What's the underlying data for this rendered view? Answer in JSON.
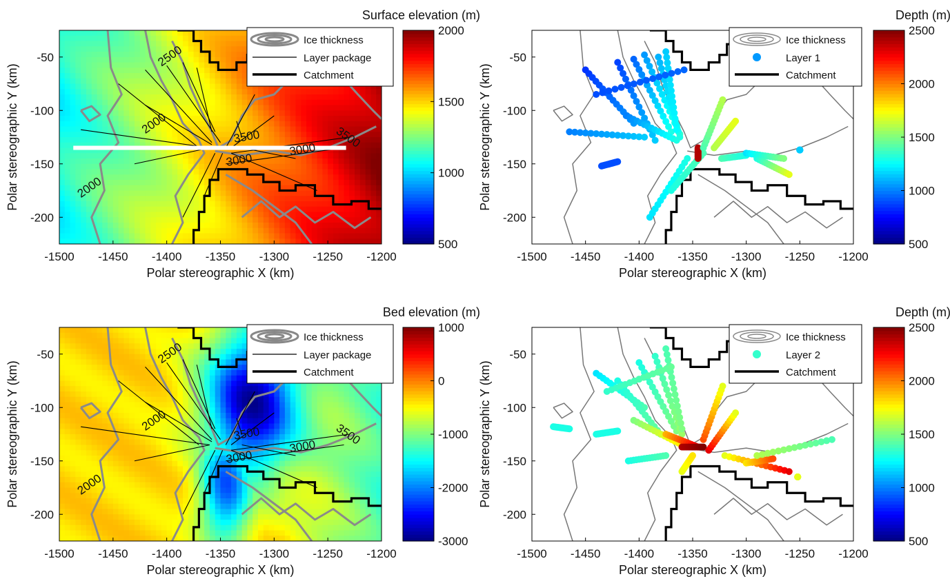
{
  "chart_data": [
    {
      "type": "heatmap",
      "panel": "top-left",
      "xlabel": "Polar stereographic X (km)",
      "ylabel": "Polar stereographic Y (km)",
      "xlim": [
        -1500,
        -1200
      ],
      "ylim": [
        -225,
        -25
      ],
      "xticks": [
        -1500,
        -1450,
        -1400,
        -1350,
        -1300,
        -1250,
        -1200
      ],
      "yticks": [
        -50,
        -100,
        -150,
        -200
      ],
      "colorbar": {
        "title": "Surface elevation (m)",
        "min": 500,
        "max": 2000,
        "ticks": [
          2000,
          1500,
          1000,
          500
        ],
        "colormap": "jet"
      },
      "field_trend": "increases west to east (about 1100 m at x=-1500 to about 1950 m at x=-1200)",
      "legend": {
        "position": "top-right",
        "entries": [
          "Ice thickness",
          "Layer package",
          "Catchment"
        ]
      },
      "contour_labels": [
        {
          "text": "2500",
          "x": -1395,
          "y": -52
        },
        {
          "text": "2000",
          "x": -1410,
          "y": -115
        },
        {
          "text": "2000",
          "x": -1470,
          "y": -175
        },
        {
          "text": "3500",
          "x": -1325,
          "y": -128
        },
        {
          "text": "3000",
          "x": -1332,
          "y": -150
        },
        {
          "text": "3000",
          "x": -1273,
          "y": -140
        },
        {
          "text": "3500",
          "x": -1233,
          "y": -128
        }
      ],
      "profile_line": {
        "x": [
          -1487,
          -1233
        ],
        "y": [
          -135,
          -135
        ]
      }
    },
    {
      "type": "scatter",
      "panel": "top-right",
      "xlabel": "Polar stereographic X (km)",
      "ylabel": "Polar stereographic Y (km)",
      "xlim": [
        -1500,
        -1200
      ],
      "ylim": [
        -225,
        -25
      ],
      "xticks": [
        -1500,
        -1450,
        -1400,
        -1350,
        -1300,
        -1250,
        -1200
      ],
      "yticks": [
        -50,
        -100,
        -150,
        -200
      ],
      "colorbar": {
        "title": "Depth (m)",
        "min": 500,
        "max": 2500,
        "ticks": [
          2500,
          2000,
          1500,
          1000,
          500
        ],
        "colormap": "jet"
      },
      "legend": {
        "position": "top-right",
        "entries": [
          "Ice thickness",
          "Layer 1",
          "Catchment"
        ]
      },
      "series": [
        {
          "name": "Layer 1",
          "tracks": [
            {
              "x": [
                -1450,
                -1405
              ],
              "y": [
                -62,
                -112
              ],
              "depth": [
                850,
                1050
              ]
            },
            {
              "x": [
                -1420,
                -1385
              ],
              "y": [
                -55,
                -128
              ],
              "depth": [
                880,
                1150
              ]
            },
            {
              "x": [
                -1405,
                -1370
              ],
              "y": [
                -52,
                -120
              ],
              "depth": [
                950,
                1300
              ]
            },
            {
              "x": [
                -1395,
                -1362
              ],
              "y": [
                -48,
                -122
              ],
              "depth": [
                1050,
                1350
              ]
            },
            {
              "x": [
                -1382,
                -1362
              ],
              "y": [
                -50,
                -125
              ],
              "depth": [
                1100,
                1300
              ]
            },
            {
              "x": [
                -1375,
                -1365
              ],
              "y": [
                -45,
                -118
              ],
              "depth": [
                1150,
                1250
              ]
            },
            {
              "x": [
                -1440,
                -1358
              ],
              "y": [
                -85,
                -62
              ],
              "depth": [
                900,
                950
              ]
            },
            {
              "x": [
                -1465,
                -1395
              ],
              "y": [
                -120,
                -125
              ],
              "depth": [
                1000,
                1150
              ]
            },
            {
              "x": [
                -1412,
                -1365
              ],
              "y": [
                -105,
                -128
              ],
              "depth": [
                1000,
                1300
              ]
            },
            {
              "x": [
                -1435,
                -1420
              ],
              "y": [
                -152,
                -148
              ],
              "depth": [
                900,
                900
              ]
            },
            {
              "x": [
                -1390,
                -1355
              ],
              "y": [
                -200,
                -145
              ],
              "depth": [
                1200,
                1300
              ]
            },
            {
              "x": [
                -1370,
                -1340
              ],
              "y": [
                -175,
                -140
              ],
              "depth": [
                1300,
                1400
              ]
            },
            {
              "x": [
                -1345,
                -1345
              ],
              "y": [
                -135,
                -145
              ],
              "depth": [
                2400,
                2400
              ]
            },
            {
              "x": [
                -1340,
                -1322
              ],
              "y": [
                -135,
                -90
              ],
              "depth": [
                1400,
                1600
              ]
            },
            {
              "x": [
                -1330,
                -1310
              ],
              "y": [
                -135,
                -110
              ],
              "depth": [
                1600,
                1700
              ]
            },
            {
              "x": [
                -1323,
                -1300
              ],
              "y": [
                -145,
                -142
              ],
              "depth": [
                1400,
                1300
              ]
            },
            {
              "x": [
                -1300,
                -1265
              ],
              "y": [
                -140,
                -145
              ],
              "depth": [
                1200,
                1500
              ]
            },
            {
              "x": [
                -1290,
                -1260
              ],
              "y": [
                -145,
                -160
              ],
              "depth": [
                1300,
                1700
              ]
            },
            {
              "x": [
                -1250,
                -1250
              ],
              "y": [
                -137,
                -137
              ],
              "depth": [
                1150,
                1150
              ]
            }
          ]
        }
      ]
    },
    {
      "type": "heatmap",
      "panel": "bottom-left",
      "xlabel": "Polar stereographic X (km)",
      "ylabel": "Polar stereographic Y (km)",
      "xlim": [
        -1500,
        -1200
      ],
      "ylim": [
        -225,
        -25
      ],
      "xticks": [
        -1500,
        -1450,
        -1400,
        -1350,
        -1300,
        -1250,
        -1200
      ],
      "yticks": [
        -50,
        -100,
        -150,
        -200
      ],
      "colorbar": {
        "title": "Bed elevation (m)",
        "min": -3000,
        "max": 1000,
        "ticks": [
          1000,
          0,
          -1000,
          -2000,
          -3000
        ],
        "colormap": "jet"
      },
      "field_trend": "about -300 m in the west, deep trough down to about -2800 m centred near x=-1320, y=-90, about -1300 m in the east",
      "legend": {
        "position": "top-right",
        "entries": [
          "Ice thickness",
          "Layer package",
          "Catchment"
        ]
      },
      "contour_labels": [
        {
          "text": "2500",
          "x": -1395,
          "y": -52
        },
        {
          "text": "2000",
          "x": -1410,
          "y": -115
        },
        {
          "text": "2000",
          "x": -1470,
          "y": -175
        },
        {
          "text": "3500",
          "x": -1325,
          "y": -128
        },
        {
          "text": "3000",
          "x": -1332,
          "y": -150
        },
        {
          "text": "3000",
          "x": -1273,
          "y": -140
        },
        {
          "text": "3500",
          "x": -1233,
          "y": -128
        }
      ]
    },
    {
      "type": "scatter",
      "panel": "bottom-right",
      "xlabel": "Polar stereographic X (km)",
      "ylabel": "Polar stereographic Y (km)",
      "xlim": [
        -1500,
        -1200
      ],
      "ylim": [
        -225,
        -25
      ],
      "xticks": [
        -1500,
        -1450,
        -1400,
        -1350,
        -1300,
        -1250,
        -1200
      ],
      "yticks": [
        -50,
        -100,
        -150,
        -200
      ],
      "colorbar": {
        "title": "Depth (m)",
        "min": 500,
        "max": 2500,
        "ticks": [
          2500,
          2000,
          1500,
          1000,
          500
        ],
        "colormap": "jet"
      },
      "legend": {
        "position": "top-right",
        "entries": [
          "Ice thickness",
          "Layer 2",
          "Catchment"
        ]
      },
      "series": [
        {
          "name": "Layer 2",
          "tracks": [
            {
              "x": [
                -1440,
                -1395
              ],
              "y": [
                -68,
                -100
              ],
              "depth": [
                1200,
                1400
              ]
            },
            {
              "x": [
                -1420,
                -1380
              ],
              "y": [
                -75,
                -125
              ],
              "depth": [
                1300,
                1450
              ]
            },
            {
              "x": [
                -1400,
                -1365
              ],
              "y": [
                -58,
                -122
              ],
              "depth": [
                1300,
                1500
              ]
            },
            {
              "x": [
                -1385,
                -1360
              ],
              "y": [
                -52,
                -125
              ],
              "depth": [
                1350,
                1550
              ]
            },
            {
              "x": [
                -1375,
                -1360
              ],
              "y": [
                -45,
                -120
              ],
              "depth": [
                1400,
                1500
              ]
            },
            {
              "x": [
                -1430,
                -1370
              ],
              "y": [
                -85,
                -62
              ],
              "depth": [
                1350,
                1450
              ]
            },
            {
              "x": [
                -1480,
                -1465
              ],
              "y": [
                -118,
                -120
              ],
              "depth": [
                1300,
                1300
              ]
            },
            {
              "x": [
                -1440,
                -1420
              ],
              "y": [
                -125,
                -122
              ],
              "depth": [
                1300,
                1300
              ]
            },
            {
              "x": [
                -1405,
                -1360
              ],
              "y": [
                -112,
                -135
              ],
              "depth": [
                1500,
                1800
              ]
            },
            {
              "x": [
                -1375,
                -1345
              ],
              "y": [
                -125,
                -137
              ],
              "depth": [
                1900,
                2300
              ]
            },
            {
              "x": [
                -1360,
                -1340
              ],
              "y": [
                -137,
                -137
              ],
              "depth": [
                2400,
                2500
              ]
            },
            {
              "x": [
                -1340,
                -1322
              ],
              "y": [
                -130,
                -80
              ],
              "depth": [
                2100,
                1700
              ]
            },
            {
              "x": [
                -1335,
                -1310
              ],
              "y": [
                -140,
                -105
              ],
              "depth": [
                2300,
                1700
              ]
            },
            {
              "x": [
                -1360,
                -1350
              ],
              "y": [
                -160,
                -145
              ],
              "depth": [
                1700,
                1800
              ]
            },
            {
              "x": [
                -1410,
                -1375
              ],
              "y": [
                -150,
                -145
              ],
              "depth": [
                1300,
                1400
              ]
            },
            {
              "x": [
                -1320,
                -1260
              ],
              "y": [
                -145,
                -160
              ],
              "depth": [
                1700,
                2300
              ]
            },
            {
              "x": [
                -1300,
                -1275
              ],
              "y": [
                -152,
                -148
              ],
              "depth": [
                1800,
                2100
              ]
            },
            {
              "x": [
                -1290,
                -1220
              ],
              "y": [
                -145,
                -130
              ],
              "depth": [
                1600,
                1400
              ]
            },
            {
              "x": [
                -1252,
                -1252
              ],
              "y": [
                -165,
                -165
              ],
              "depth": [
                1700,
                1700
              ]
            }
          ]
        }
      ]
    }
  ]
}
